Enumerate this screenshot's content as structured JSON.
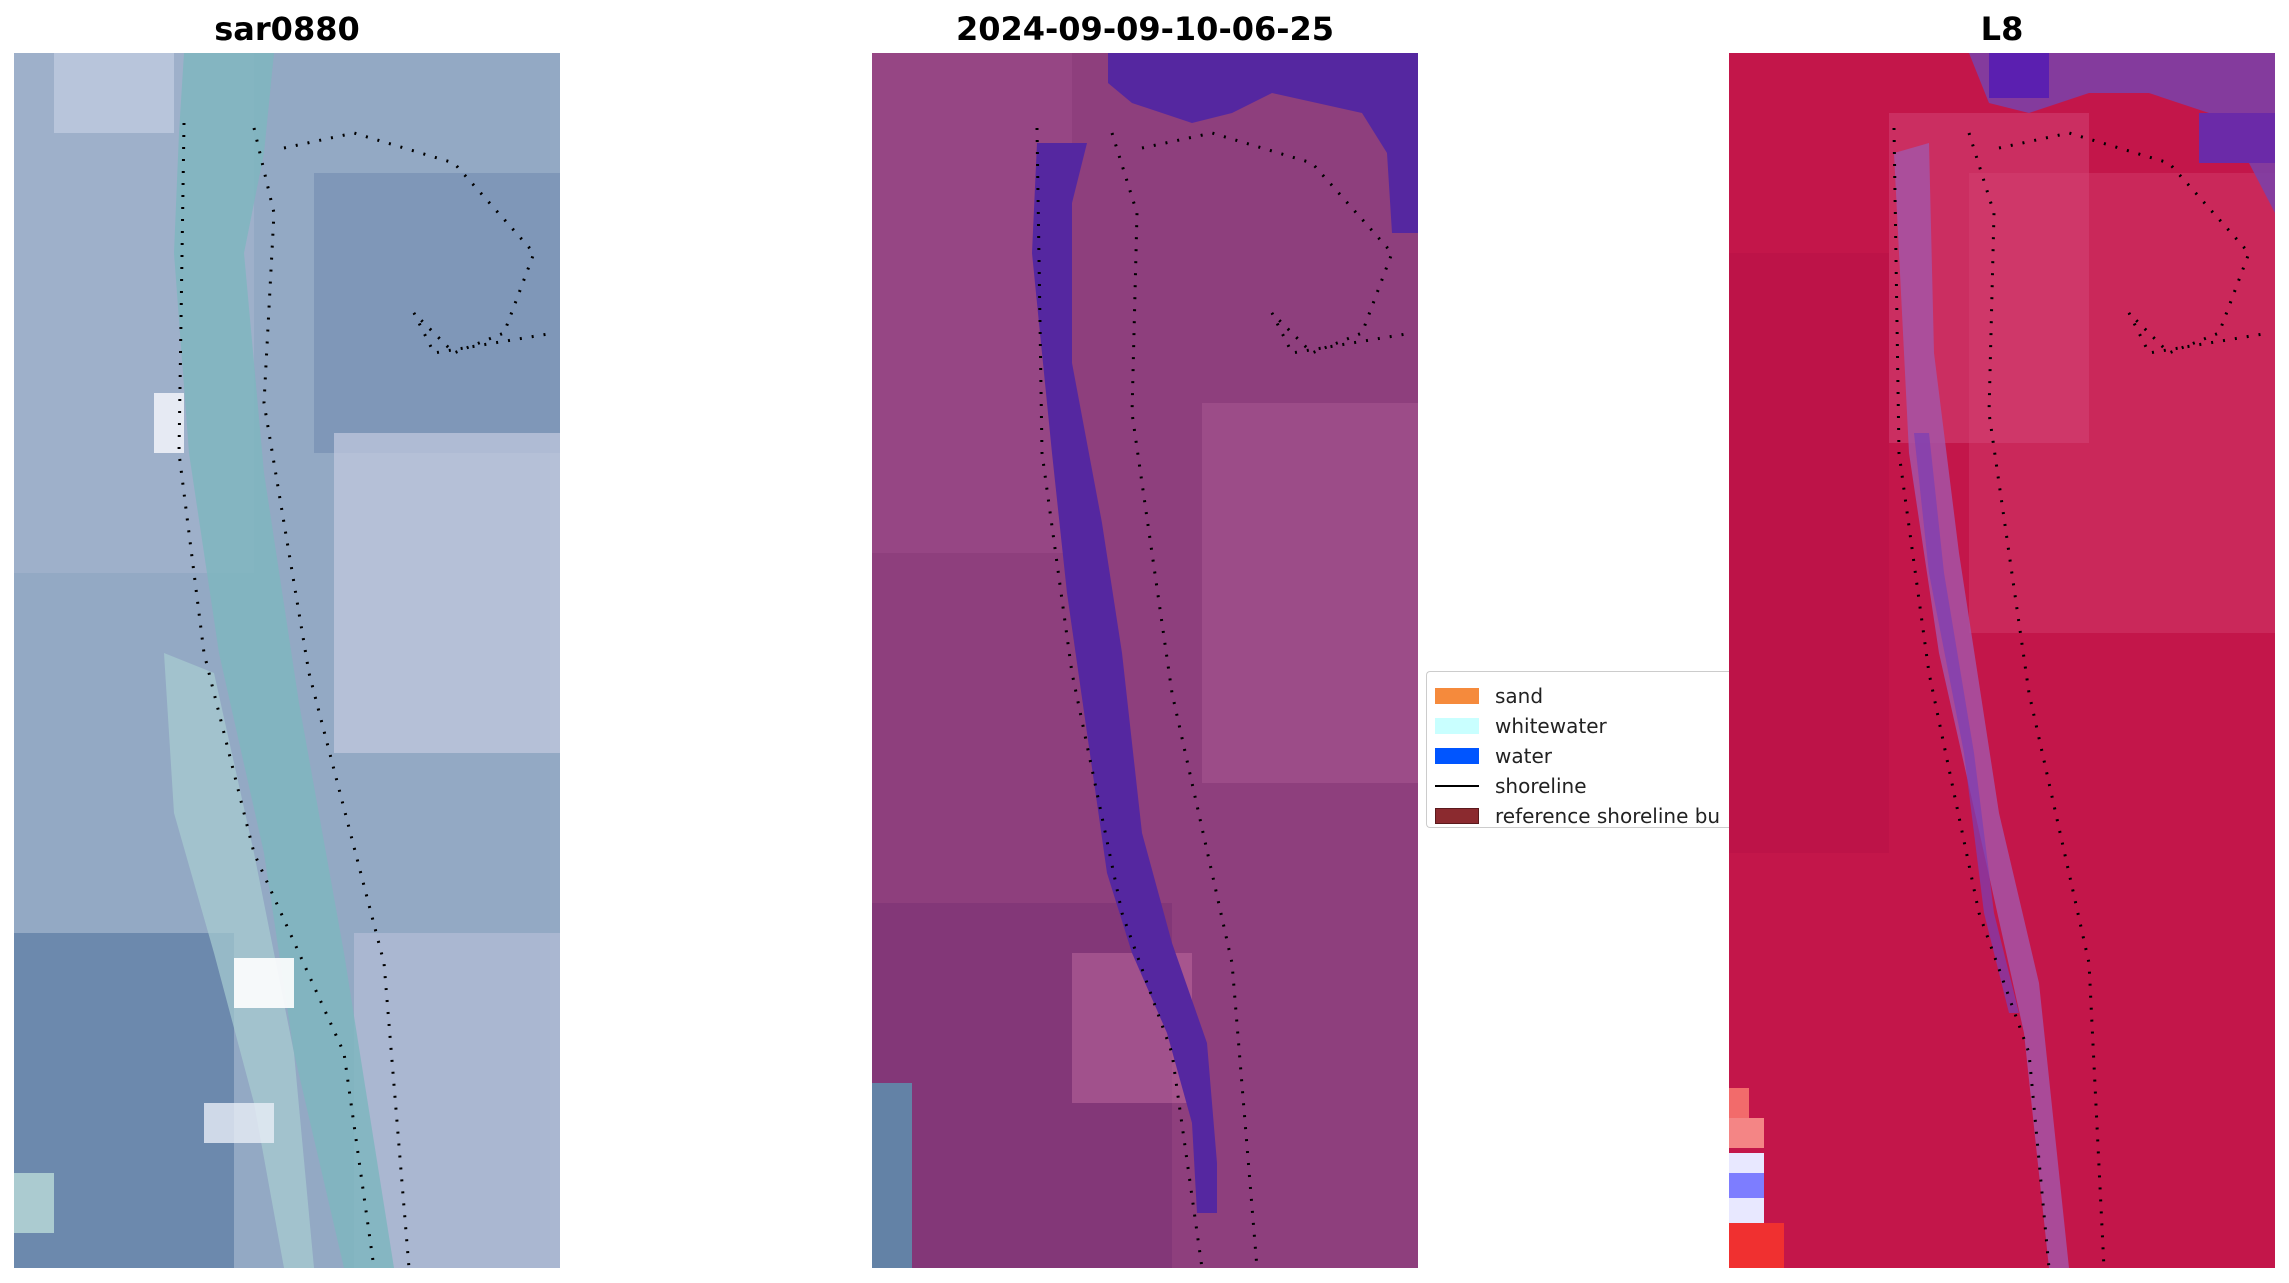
{
  "titles": {
    "left": "sar0880",
    "middle": "2024-09-09-10-06-25",
    "right": "L8"
  },
  "legend": {
    "items": [
      {
        "label": "sand",
        "color": "#f58a3c",
        "kind": "patch"
      },
      {
        "label": "whitewater",
        "color": "#c9ffff",
        "kind": "patch"
      },
      {
        "label": "water",
        "color": "#0055ff",
        "kind": "patch"
      },
      {
        "label": "shoreline",
        "color": "#000000",
        "kind": "line"
      },
      {
        "label": "reference shoreline bu",
        "color": "#8b2a2f",
        "kind": "patch"
      }
    ]
  },
  "colors": {
    "rgb_base": "#8ea4bd",
    "rgb_channel": "#7fb5bf",
    "class_base": "#8e3f7d",
    "class_water": "#5527a0",
    "ndwi_base": "#c3164a",
    "ndwi_channel": "#a654a6"
  }
}
